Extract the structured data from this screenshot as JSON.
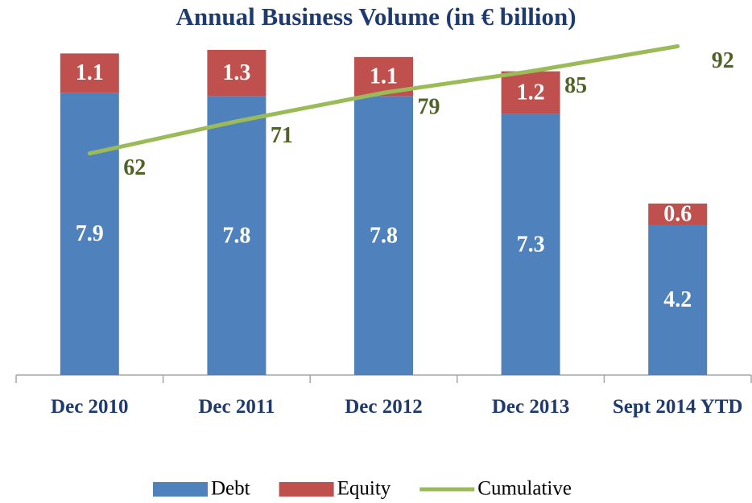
{
  "chart_data": {
    "type": "bar",
    "stacked": true,
    "title": "Annual Business Volume (in € billion)",
    "categories": [
      "Dec 2010",
      "Dec 2011",
      "Dec 2012",
      "Dec 2013",
      "Sept 2014 YTD"
    ],
    "series": [
      {
        "name": "Debt",
        "color": "#4f81bd",
        "values": [
          7.9,
          7.8,
          7.8,
          7.3,
          4.2
        ]
      },
      {
        "name": "Equity",
        "color": "#c0504d",
        "values": [
          1.1,
          1.3,
          1.1,
          1.2,
          0.6
        ]
      },
      {
        "name": "Cumulative",
        "color": "#9bbb59",
        "type": "line",
        "axis": "y2",
        "label_color": "#4f6228",
        "values": [
          62,
          71,
          79,
          85,
          92
        ]
      }
    ],
    "ylim": [
      0,
      10
    ],
    "y2lim": [
      0,
      100
    ],
    "legend": "bottom"
  }
}
